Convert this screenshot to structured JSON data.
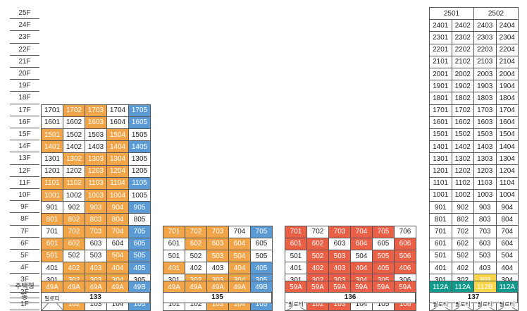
{
  "floors": [
    "25F",
    "24F",
    "23F",
    "22F",
    "21F",
    "20F",
    "19F",
    "18F",
    "17F",
    "16F",
    "15F",
    "14F",
    "13F",
    "12F",
    "11F",
    "10F",
    "9F",
    "8F",
    "7F",
    "6F",
    "5F",
    "4F",
    "3F",
    "2F",
    "1F"
  ],
  "row_labels": {
    "type": "주택형",
    "dong": "동"
  },
  "palette": {
    "orange": "#f2a548",
    "blue": "#5b9bd5",
    "red": "#ea6047",
    "teal": "#119a8c",
    "yellow": "#f9d547"
  },
  "buildings": [
    {
      "dong": "133",
      "top_floor": "17F",
      "rows": [
        [
          [
            "1701",
            "w"
          ],
          [
            "1702",
            "o"
          ],
          [
            "1703",
            "o"
          ],
          [
            "1704",
            "w"
          ],
          [
            "1705",
            "b"
          ]
        ],
        [
          [
            "1601",
            "w"
          ],
          [
            "1602",
            "w"
          ],
          [
            "1603",
            "o"
          ],
          [
            "1604",
            "w"
          ],
          [
            "1605",
            "b"
          ]
        ],
        [
          [
            "1501",
            "o"
          ],
          [
            "1502",
            "w"
          ],
          [
            "1503",
            "w"
          ],
          [
            "1504",
            "o"
          ],
          [
            "1505",
            "w"
          ]
        ],
        [
          [
            "1401",
            "o"
          ],
          [
            "1402",
            "w"
          ],
          [
            "1403",
            "w"
          ],
          [
            "1404",
            "o"
          ],
          [
            "1405",
            "b"
          ]
        ],
        [
          [
            "1301",
            "w"
          ],
          [
            "1302",
            "o"
          ],
          [
            "1303",
            "o"
          ],
          [
            "1304",
            "o"
          ],
          [
            "1305",
            "w"
          ]
        ],
        [
          [
            "1201",
            "w"
          ],
          [
            "1202",
            "w"
          ],
          [
            "1203",
            "o"
          ],
          [
            "1204",
            "o"
          ],
          [
            "1205",
            "w"
          ]
        ],
        [
          [
            "1101",
            "o"
          ],
          [
            "1102",
            "o"
          ],
          [
            "1103",
            "o"
          ],
          [
            "1104",
            "o"
          ],
          [
            "1105",
            "b"
          ]
        ],
        [
          [
            "1001",
            "o"
          ],
          [
            "1002",
            "w"
          ],
          [
            "1003",
            "o"
          ],
          [
            "1004",
            "o"
          ],
          [
            "1005",
            "w"
          ]
        ],
        [
          [
            "901",
            "w"
          ],
          [
            "902",
            "w"
          ],
          [
            "903",
            "o"
          ],
          [
            "904",
            "o"
          ],
          [
            "905",
            "b"
          ]
        ],
        [
          [
            "801",
            "o"
          ],
          [
            "802",
            "o"
          ],
          [
            "803",
            "o"
          ],
          [
            "804",
            "o"
          ],
          [
            "805",
            "w"
          ]
        ],
        [
          [
            "701",
            "w"
          ],
          [
            "702",
            "o"
          ],
          [
            "703",
            "o"
          ],
          [
            "704",
            "o"
          ],
          [
            "705",
            "b"
          ]
        ],
        [
          [
            "601",
            "o"
          ],
          [
            "602",
            "o"
          ],
          [
            "603",
            "w"
          ],
          [
            "604",
            "w"
          ],
          [
            "605",
            "b"
          ]
        ],
        [
          [
            "501",
            "o"
          ],
          [
            "502",
            "w"
          ],
          [
            "503",
            "w"
          ],
          [
            "504",
            "o"
          ],
          [
            "505",
            "b"
          ]
        ],
        [
          [
            "401",
            "w"
          ],
          [
            "402",
            "o"
          ],
          [
            "403",
            "o"
          ],
          [
            "404",
            "o"
          ],
          [
            "405",
            "b"
          ]
        ],
        [
          [
            "301",
            "w"
          ],
          [
            "302",
            "o"
          ],
          [
            "303",
            "o"
          ],
          [
            "304",
            "o"
          ],
          [
            "305",
            "w"
          ]
        ],
        [
          [
            "필로티",
            "p"
          ],
          [
            "202",
            "o"
          ],
          [
            "203",
            "w"
          ],
          [
            "204",
            "o"
          ],
          [
            "205",
            "b"
          ]
        ],
        [
          null,
          [
            "102",
            "o"
          ],
          [
            "103",
            "w"
          ],
          [
            "104",
            "w"
          ],
          [
            "105",
            "b"
          ]
        ]
      ],
      "types": [
        [
          "49A",
          "o"
        ],
        [
          "49A",
          "o"
        ],
        [
          "49A",
          "o"
        ],
        [
          "49A",
          "o"
        ],
        [
          "49B",
          "b"
        ]
      ]
    },
    {
      "dong": "135",
      "top_floor": "7F",
      "rows": [
        [
          [
            "701",
            "o"
          ],
          [
            "702",
            "o"
          ],
          [
            "703",
            "o"
          ],
          [
            "704",
            "w"
          ],
          [
            "705",
            "b"
          ]
        ],
        [
          [
            "601",
            "w"
          ],
          [
            "602",
            "o"
          ],
          [
            "603",
            "o"
          ],
          [
            "604",
            "o"
          ],
          [
            "605",
            "w"
          ]
        ],
        [
          [
            "501",
            "w"
          ],
          [
            "502",
            "w"
          ],
          [
            "503",
            "o"
          ],
          [
            "504",
            "o"
          ],
          [
            "505",
            "w"
          ]
        ],
        [
          [
            "401",
            "o"
          ],
          [
            "402",
            "w"
          ],
          [
            "403",
            "w"
          ],
          [
            "404",
            "o"
          ],
          [
            "405",
            "b"
          ]
        ],
        [
          [
            "301",
            "w"
          ],
          [
            "302",
            "o"
          ],
          [
            "303",
            "o"
          ],
          [
            "304",
            "o"
          ],
          [
            "305",
            "b"
          ]
        ],
        [
          [
            "201",
            "o"
          ],
          [
            "202",
            "o"
          ],
          [
            "203",
            "o"
          ],
          [
            "204",
            "o"
          ],
          [
            "205",
            "b"
          ]
        ],
        [
          [
            "101",
            "w"
          ],
          [
            "102",
            "w"
          ],
          [
            "103",
            "o"
          ],
          [
            "104",
            "o"
          ],
          [
            "105",
            "b"
          ]
        ]
      ],
      "types": [
        [
          "49A",
          "o"
        ],
        [
          "49A",
          "o"
        ],
        [
          "49A",
          "o"
        ],
        [
          "49A",
          "o"
        ],
        [
          "49B",
          "b"
        ]
      ]
    },
    {
      "dong": "136",
      "top_floor": "7F",
      "rows": [
        [
          [
            "701",
            "r"
          ],
          [
            "702",
            "w"
          ],
          [
            "703",
            "r"
          ],
          [
            "704",
            "r"
          ],
          [
            "705",
            "r"
          ],
          [
            "706",
            "w"
          ]
        ],
        [
          [
            "601",
            "r"
          ],
          [
            "602",
            "r"
          ],
          [
            "603",
            "w"
          ],
          [
            "604",
            "r"
          ],
          [
            "605",
            "w"
          ],
          [
            "606",
            "r"
          ]
        ],
        [
          [
            "501",
            "w"
          ],
          [
            "502",
            "r"
          ],
          [
            "503",
            "r"
          ],
          [
            "504",
            "w"
          ],
          [
            "505",
            "r"
          ],
          [
            "506",
            "r"
          ]
        ],
        [
          [
            "401",
            "w"
          ],
          [
            "402",
            "r"
          ],
          [
            "403",
            "r"
          ],
          [
            "404",
            "r"
          ],
          [
            "405",
            "r"
          ],
          [
            "406",
            "r"
          ]
        ],
        [
          [
            "301",
            "w"
          ],
          [
            "302",
            "r"
          ],
          [
            "303",
            "r"
          ],
          [
            "304",
            "r"
          ],
          [
            "305",
            "r"
          ],
          [
            "306",
            "w"
          ]
        ],
        [
          [
            "201",
            "w"
          ],
          [
            "202",
            "r"
          ],
          [
            "203",
            "w"
          ],
          [
            "204",
            "w"
          ],
          [
            "205",
            "r"
          ],
          [
            "206",
            "r"
          ]
        ],
        [
          [
            "필로티",
            "p"
          ],
          [
            "102",
            "r"
          ],
          [
            "103",
            "r"
          ],
          [
            "104",
            "w"
          ],
          [
            "105",
            "w"
          ],
          [
            "106",
            "r"
          ]
        ]
      ],
      "types": [
        [
          "59A",
          "r"
        ],
        [
          "59A",
          "r"
        ],
        [
          "59A",
          "r"
        ],
        [
          "59A",
          "r"
        ],
        [
          "59A",
          "r"
        ],
        [
          "59A",
          "r"
        ]
      ]
    },
    {
      "dong": "137",
      "top_floor": "25F",
      "header": [
        "2501",
        "2502"
      ],
      "rows": [
        [
          [
            "2401",
            "w"
          ],
          [
            "2402",
            "w"
          ],
          [
            "2403",
            "w"
          ],
          [
            "2404",
            "w"
          ]
        ],
        [
          [
            "2301",
            "w"
          ],
          [
            "2302",
            "w"
          ],
          [
            "2303",
            "w"
          ],
          [
            "2304",
            "w"
          ]
        ],
        [
          [
            "2201",
            "w"
          ],
          [
            "2202",
            "w"
          ],
          [
            "2203",
            "w"
          ],
          [
            "2204",
            "w"
          ]
        ],
        [
          [
            "2101",
            "w"
          ],
          [
            "2102",
            "w"
          ],
          [
            "2103",
            "w"
          ],
          [
            "2104",
            "w"
          ]
        ],
        [
          [
            "2001",
            "w"
          ],
          [
            "2002",
            "w"
          ],
          [
            "2003",
            "w"
          ],
          [
            "2004",
            "w"
          ]
        ],
        [
          [
            "1901",
            "w"
          ],
          [
            "1902",
            "w"
          ],
          [
            "1903",
            "w"
          ],
          [
            "1904",
            "w"
          ]
        ],
        [
          [
            "1801",
            "w"
          ],
          [
            "1802",
            "w"
          ],
          [
            "1803",
            "w"
          ],
          [
            "1804",
            "w"
          ]
        ],
        [
          [
            "1701",
            "w"
          ],
          [
            "1702",
            "w"
          ],
          [
            "1703",
            "w"
          ],
          [
            "1704",
            "w"
          ]
        ],
        [
          [
            "1601",
            "w"
          ],
          [
            "1602",
            "w"
          ],
          [
            "1603",
            "w"
          ],
          [
            "1604",
            "w"
          ]
        ],
        [
          [
            "1501",
            "w"
          ],
          [
            "1502",
            "w"
          ],
          [
            "1503",
            "w"
          ],
          [
            "1504",
            "w"
          ]
        ],
        [
          [
            "1401",
            "w"
          ],
          [
            "1402",
            "w"
          ],
          [
            "1403",
            "w"
          ],
          [
            "1404",
            "w"
          ]
        ],
        [
          [
            "1301",
            "w"
          ],
          [
            "1302",
            "w"
          ],
          [
            "1303",
            "w"
          ],
          [
            "1304",
            "w"
          ]
        ],
        [
          [
            "1201",
            "w"
          ],
          [
            "1202",
            "w"
          ],
          [
            "1203",
            "w"
          ],
          [
            "1204",
            "w"
          ]
        ],
        [
          [
            "1101",
            "w"
          ],
          [
            "1102",
            "w"
          ],
          [
            "1103",
            "w"
          ],
          [
            "1104",
            "w"
          ]
        ],
        [
          [
            "1001",
            "w"
          ],
          [
            "1002",
            "w"
          ],
          [
            "1003",
            "w"
          ],
          [
            "1004",
            "w"
          ]
        ],
        [
          [
            "901",
            "w"
          ],
          [
            "902",
            "w"
          ],
          [
            "903",
            "w"
          ],
          [
            "904",
            "w"
          ]
        ],
        [
          [
            "801",
            "w"
          ],
          [
            "802",
            "w"
          ],
          [
            "803",
            "w"
          ],
          [
            "804",
            "w"
          ]
        ],
        [
          [
            "701",
            "w"
          ],
          [
            "702",
            "w"
          ],
          [
            "703",
            "w"
          ],
          [
            "704",
            "w"
          ]
        ],
        [
          [
            "601",
            "w"
          ],
          [
            "602",
            "w"
          ],
          [
            "603",
            "w"
          ],
          [
            "604",
            "w"
          ]
        ],
        [
          [
            "501",
            "w"
          ],
          [
            "502",
            "w"
          ],
          [
            "503",
            "w"
          ],
          [
            "504",
            "w"
          ]
        ],
        [
          [
            "401",
            "w"
          ],
          [
            "402",
            "w"
          ],
          [
            "403",
            "w"
          ],
          [
            "404",
            "w"
          ]
        ],
        [
          [
            "301",
            "w"
          ],
          [
            "302",
            "w"
          ],
          [
            "303",
            "y"
          ],
          [
            "304",
            "w"
          ]
        ],
        [
          [
            "201",
            "t"
          ],
          [
            "202",
            "t"
          ],
          [
            "203",
            "y"
          ],
          [
            "204",
            "t"
          ]
        ],
        [
          [
            "필로티",
            "p"
          ],
          [
            "필로티",
            "p"
          ],
          [
            "필로티",
            "p"
          ],
          [
            "필로티",
            "p"
          ]
        ]
      ],
      "types": [
        [
          "112A",
          "t"
        ],
        [
          "112A",
          "t"
        ],
        [
          "112B",
          "y"
        ],
        [
          "112A",
          "t"
        ]
      ]
    }
  ]
}
